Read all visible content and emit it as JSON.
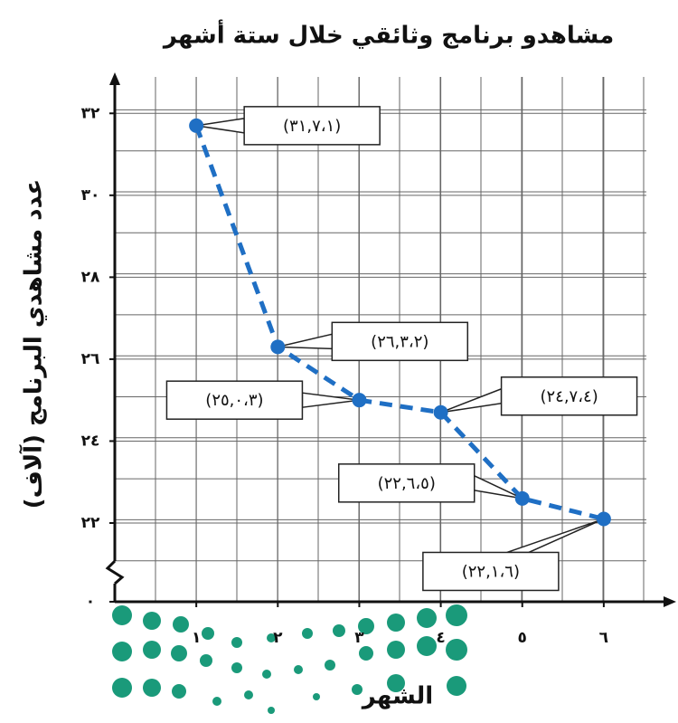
{
  "chart_data": {
    "type": "line",
    "title": "مشاهدو برنامج وثائقي خلال ستة أشهر",
    "x_label": "الشهر",
    "y_label": "عدد مشاهدي البرنامج (آلاف)",
    "x": [
      1,
      2,
      3,
      4,
      5,
      6
    ],
    "series": [
      {
        "color": "#1f6fc4",
        "values": [
          31.7,
          26.3,
          25.0,
          24.7,
          22.6,
          22.1
        ],
        "value_labels": [
          "(٣١,٧،١)",
          "(٢٦,٣،٢)",
          "(٢٥,٠،٣)",
          "(٢٤,٧،٤)",
          "(٢٢,٦،٥)",
          "(٢٢,١،٦)"
        ]
      }
    ],
    "xlim": [
      0,
      6.8
    ],
    "xticks": [
      {
        "value": 1,
        "label": "١"
      },
      {
        "value": 2,
        "label": "٢"
      },
      {
        "value": 3,
        "label": "٣"
      },
      {
        "value": 4,
        "label": "٤"
      },
      {
        "value": 5,
        "label": "٥"
      },
      {
        "value": 6,
        "label": "٦"
      }
    ],
    "ylim": [
      0,
      33
    ],
    "yticks": [
      {
        "value": 0,
        "label": "٠"
      },
      {
        "value": 22,
        "label": "٢٢"
      },
      {
        "value": 24,
        "label": "٢٤"
      },
      {
        "value": 26,
        "label": "٢٦"
      },
      {
        "value": 28,
        "label": "٢٨"
      },
      {
        "value": 30,
        "label": "٣٠"
      },
      {
        "value": 32,
        "label": "٣٢"
      }
    ],
    "axis_break": true,
    "grid": true,
    "dashed": true
  }
}
